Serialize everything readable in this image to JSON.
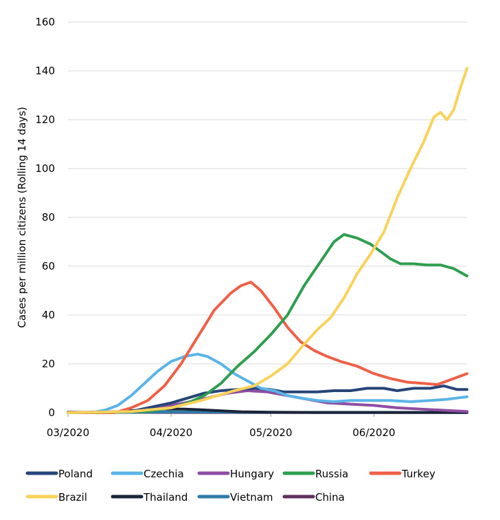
{
  "chart_data": {
    "type": "line",
    "title": "",
    "xlabel": "",
    "ylabel": "Cases per million citizens (Rolling 14 days)",
    "ylim": [
      0,
      160
    ],
    "yticks": [
      0,
      20,
      40,
      60,
      80,
      100,
      120,
      140,
      160
    ],
    "xlim": [
      "2020-03-01",
      "2020-06-29"
    ],
    "xticks": [
      {
        "date": "2020-03-01",
        "label": "03/2020"
      },
      {
        "date": "2020-04-01",
        "label": "04/2020"
      },
      {
        "date": "2020-05-01",
        "label": "05/2020"
      },
      {
        "date": "2020-06-01",
        "label": "06/2020"
      }
    ],
    "grid": "horizontal",
    "legend_position": "bottom",
    "series": [
      {
        "name": "Poland",
        "color": "#264478",
        "points": [
          [
            "2020-03-01",
            0
          ],
          [
            "2020-03-20",
            0.5
          ],
          [
            "2020-03-25",
            2
          ],
          [
            "2020-04-01",
            4
          ],
          [
            "2020-04-06",
            6
          ],
          [
            "2020-04-11",
            8
          ],
          [
            "2020-04-16",
            9
          ],
          [
            "2020-04-21",
            9.5
          ],
          [
            "2020-04-26",
            10
          ],
          [
            "2020-05-01",
            9.5
          ],
          [
            "2020-05-05",
            8.5
          ],
          [
            "2020-05-10",
            8.5
          ],
          [
            "2020-05-15",
            8.5
          ],
          [
            "2020-05-20",
            9
          ],
          [
            "2020-05-25",
            9
          ],
          [
            "2020-05-30",
            10
          ],
          [
            "2020-06-04",
            10
          ],
          [
            "2020-06-08",
            9
          ],
          [
            "2020-06-13",
            10
          ],
          [
            "2020-06-18",
            10
          ],
          [
            "2020-06-22",
            11
          ],
          [
            "2020-06-26",
            9.5
          ],
          [
            "2020-06-29",
            9.5
          ]
        ]
      },
      {
        "name": "Czechia",
        "color": "#5BB4E6",
        "points": [
          [
            "2020-03-01",
            0
          ],
          [
            "2020-03-08",
            0
          ],
          [
            "2020-03-12",
            1
          ],
          [
            "2020-03-16",
            3
          ],
          [
            "2020-03-20",
            7
          ],
          [
            "2020-03-24",
            12
          ],
          [
            "2020-03-28",
            17
          ],
          [
            "2020-04-01",
            21
          ],
          [
            "2020-04-05",
            23
          ],
          [
            "2020-04-09",
            24
          ],
          [
            "2020-04-12",
            23
          ],
          [
            "2020-04-16",
            20
          ],
          [
            "2020-04-20",
            16
          ],
          [
            "2020-04-24",
            13
          ],
          [
            "2020-04-28",
            10
          ],
          [
            "2020-05-02",
            9
          ],
          [
            "2020-05-06",
            7
          ],
          [
            "2020-05-10",
            6
          ],
          [
            "2020-05-15",
            5
          ],
          [
            "2020-05-20",
            4.5
          ],
          [
            "2020-05-25",
            5
          ],
          [
            "2020-05-31",
            5
          ],
          [
            "2020-06-06",
            5
          ],
          [
            "2020-06-12",
            4.5
          ],
          [
            "2020-06-18",
            5
          ],
          [
            "2020-06-23",
            5.5
          ],
          [
            "2020-06-26",
            6
          ],
          [
            "2020-06-29",
            6.5
          ]
        ]
      },
      {
        "name": "Hungary",
        "color": "#8E4DA3",
        "points": [
          [
            "2020-03-01",
            0
          ],
          [
            "2020-03-20",
            0.5
          ],
          [
            "2020-03-28",
            2
          ],
          [
            "2020-04-05",
            4
          ],
          [
            "2020-04-12",
            6
          ],
          [
            "2020-04-18",
            8
          ],
          [
            "2020-04-24",
            9
          ],
          [
            "2020-04-30",
            8.5
          ],
          [
            "2020-05-06",
            7
          ],
          [
            "2020-05-12",
            5.5
          ],
          [
            "2020-05-18",
            4
          ],
          [
            "2020-05-25",
            3.5
          ],
          [
            "2020-06-01",
            3
          ],
          [
            "2020-06-08",
            2
          ],
          [
            "2020-06-15",
            1.5
          ],
          [
            "2020-06-22",
            1
          ],
          [
            "2020-06-29",
            0.5
          ]
        ]
      },
      {
        "name": "Russia",
        "color": "#2E9E4F",
        "points": [
          [
            "2020-03-01",
            0
          ],
          [
            "2020-03-25",
            0.5
          ],
          [
            "2020-04-01",
            2
          ],
          [
            "2020-04-06",
            4
          ],
          [
            "2020-04-11",
            7
          ],
          [
            "2020-04-16",
            12
          ],
          [
            "2020-04-21",
            19
          ],
          [
            "2020-04-26",
            25
          ],
          [
            "2020-05-01",
            32
          ],
          [
            "2020-05-06",
            40
          ],
          [
            "2020-05-11",
            52
          ],
          [
            "2020-05-16",
            62
          ],
          [
            "2020-05-20",
            70
          ],
          [
            "2020-05-23",
            73
          ],
          [
            "2020-05-27",
            71.5
          ],
          [
            "2020-05-31",
            69
          ],
          [
            "2020-06-03",
            66
          ],
          [
            "2020-06-06",
            63
          ],
          [
            "2020-06-09",
            61
          ],
          [
            "2020-06-13",
            61
          ],
          [
            "2020-06-17",
            60.5
          ],
          [
            "2020-06-21",
            60.5
          ],
          [
            "2020-06-25",
            59
          ],
          [
            "2020-06-29",
            56
          ]
        ]
      },
      {
        "name": "Turkey",
        "color": "#EE6047",
        "points": [
          [
            "2020-03-01",
            0
          ],
          [
            "2020-03-15",
            0
          ],
          [
            "2020-03-20",
            2
          ],
          [
            "2020-03-25",
            5
          ],
          [
            "2020-03-30",
            11
          ],
          [
            "2020-04-04",
            20
          ],
          [
            "2020-04-09",
            31
          ],
          [
            "2020-04-14",
            42
          ],
          [
            "2020-04-19",
            49
          ],
          [
            "2020-04-22",
            52
          ],
          [
            "2020-04-25",
            53.5
          ],
          [
            "2020-04-28",
            50
          ],
          [
            "2020-05-02",
            43
          ],
          [
            "2020-05-06",
            35
          ],
          [
            "2020-05-10",
            29
          ],
          [
            "2020-05-14",
            25.5
          ],
          [
            "2020-05-18",
            23
          ],
          [
            "2020-05-22",
            21
          ],
          [
            "2020-05-27",
            19
          ],
          [
            "2020-06-01",
            16
          ],
          [
            "2020-06-06",
            14
          ],
          [
            "2020-06-11",
            12.5
          ],
          [
            "2020-06-16",
            12
          ],
          [
            "2020-06-20",
            11.5
          ],
          [
            "2020-06-24",
            13.5
          ],
          [
            "2020-06-29",
            16
          ]
        ]
      },
      {
        "name": "Brazil",
        "color": "#F9D25B",
        "points": [
          [
            "2020-03-01",
            0
          ],
          [
            "2020-03-20",
            0.5
          ],
          [
            "2020-04-01",
            2
          ],
          [
            "2020-04-10",
            5
          ],
          [
            "2020-04-20",
            9
          ],
          [
            "2020-04-26",
            11
          ],
          [
            "2020-05-01",
            15
          ],
          [
            "2020-05-06",
            20
          ],
          [
            "2020-05-11",
            28
          ],
          [
            "2020-05-15",
            34
          ],
          [
            "2020-05-19",
            39
          ],
          [
            "2020-05-23",
            47
          ],
          [
            "2020-05-27",
            57
          ],
          [
            "2020-05-31",
            65
          ],
          [
            "2020-06-04",
            74
          ],
          [
            "2020-06-08",
            88
          ],
          [
            "2020-06-12",
            100
          ],
          [
            "2020-06-16",
            111
          ],
          [
            "2020-06-19",
            121
          ],
          [
            "2020-06-21",
            123
          ],
          [
            "2020-06-23",
            120
          ],
          [
            "2020-06-25",
            124
          ],
          [
            "2020-06-27",
            133
          ],
          [
            "2020-06-29",
            141
          ]
        ]
      },
      {
        "name": "Thailand",
        "color": "#1A2539",
        "points": [
          [
            "2020-03-01",
            0
          ],
          [
            "2020-03-15",
            0.3
          ],
          [
            "2020-03-22",
            1
          ],
          [
            "2020-03-29",
            1.5
          ],
          [
            "2020-04-05",
            1.5
          ],
          [
            "2020-04-10",
            1.2
          ],
          [
            "2020-04-16",
            0.8
          ],
          [
            "2020-04-22",
            0.4
          ],
          [
            "2020-04-30",
            0.2
          ],
          [
            "2020-05-15",
            0.1
          ],
          [
            "2020-06-29",
            0.1
          ]
        ]
      },
      {
        "name": "Vietnam",
        "color": "#2E7BA8",
        "points": [
          [
            "2020-03-01",
            0
          ],
          [
            "2020-03-20",
            0.2
          ],
          [
            "2020-04-05",
            0.3
          ],
          [
            "2020-04-20",
            0.2
          ],
          [
            "2020-05-10",
            0.1
          ],
          [
            "2020-06-29",
            0.1
          ]
        ]
      },
      {
        "name": "China",
        "color": "#5E2F5E",
        "points": [
          [
            "2020-03-01",
            0.2
          ],
          [
            "2020-04-01",
            0.1
          ],
          [
            "2020-05-01",
            0.05
          ],
          [
            "2020-06-29",
            0.05
          ]
        ]
      }
    ]
  }
}
